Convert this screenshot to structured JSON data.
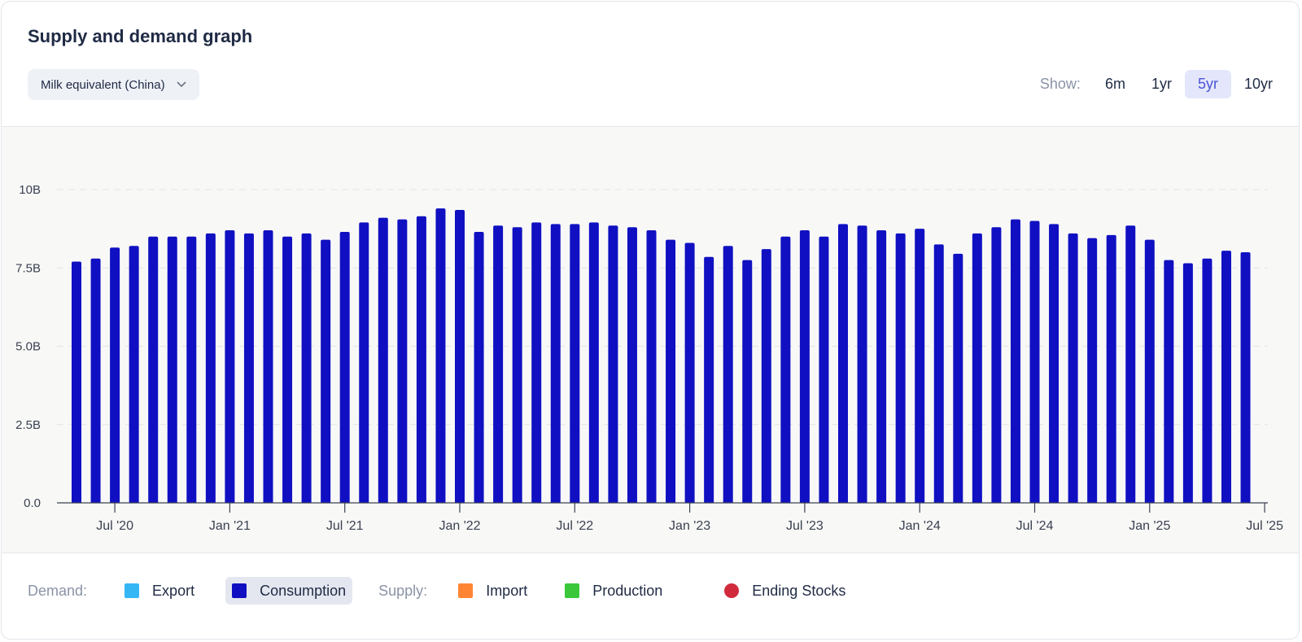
{
  "header": {
    "title": "Supply and demand graph",
    "dropdown_label": "Milk equivalent (China)",
    "show_label": "Show:",
    "ranges": [
      "6m",
      "1yr",
      "5yr",
      "10yr"
    ],
    "active_range": "5yr"
  },
  "legend": {
    "demand_label": "Demand:",
    "supply_label": "Supply:",
    "export": "Export",
    "consumption": "Consumption",
    "import": "Import",
    "production": "Production",
    "ending_stocks": "Ending Stocks"
  },
  "colors": {
    "export": "#35b6f5",
    "consumption": "#1010c2",
    "import": "#ff8534",
    "production": "#3ac83a",
    "ending_stocks": "#d12a3c"
  },
  "chart_data": {
    "type": "bar",
    "x_tick_labels": [
      "Jul '20",
      "Jan '21",
      "Jul '21",
      "Jan '22",
      "Jul '22",
      "Jan '23",
      "Jul '23",
      "Jan '24",
      "Jul '24",
      "Jan '25",
      "Jul '25"
    ],
    "y_tick_labels": [
      "0.0",
      "2.5B",
      "5.0B",
      "7.5B",
      "10B"
    ],
    "ylim": [
      0,
      10000000000
    ],
    "x_start": "May 2020",
    "x_end": "Jul 2025",
    "grid": true,
    "series": [
      {
        "name": "Consumption",
        "values": [
          7.7,
          7.8,
          8.15,
          8.2,
          8.5,
          8.5,
          8.5,
          8.6,
          8.7,
          8.6,
          8.7,
          8.5,
          8.6,
          8.4,
          8.65,
          8.95,
          9.1,
          9.05,
          9.15,
          9.4,
          9.35,
          8.65,
          8.85,
          8.8,
          8.95,
          8.9,
          8.9,
          8.95,
          8.85,
          8.8,
          8.7,
          8.4,
          8.3,
          7.85,
          8.2,
          7.75,
          8.1,
          8.5,
          8.7,
          8.5,
          8.9,
          8.85,
          8.7,
          8.6,
          8.75,
          8.25,
          7.95,
          8.6,
          8.8,
          9.05,
          9.0,
          8.9,
          8.6,
          8.45,
          8.55,
          8.85,
          8.4,
          7.75,
          7.65,
          7.8,
          8.05,
          8.0
        ]
      }
    ]
  }
}
